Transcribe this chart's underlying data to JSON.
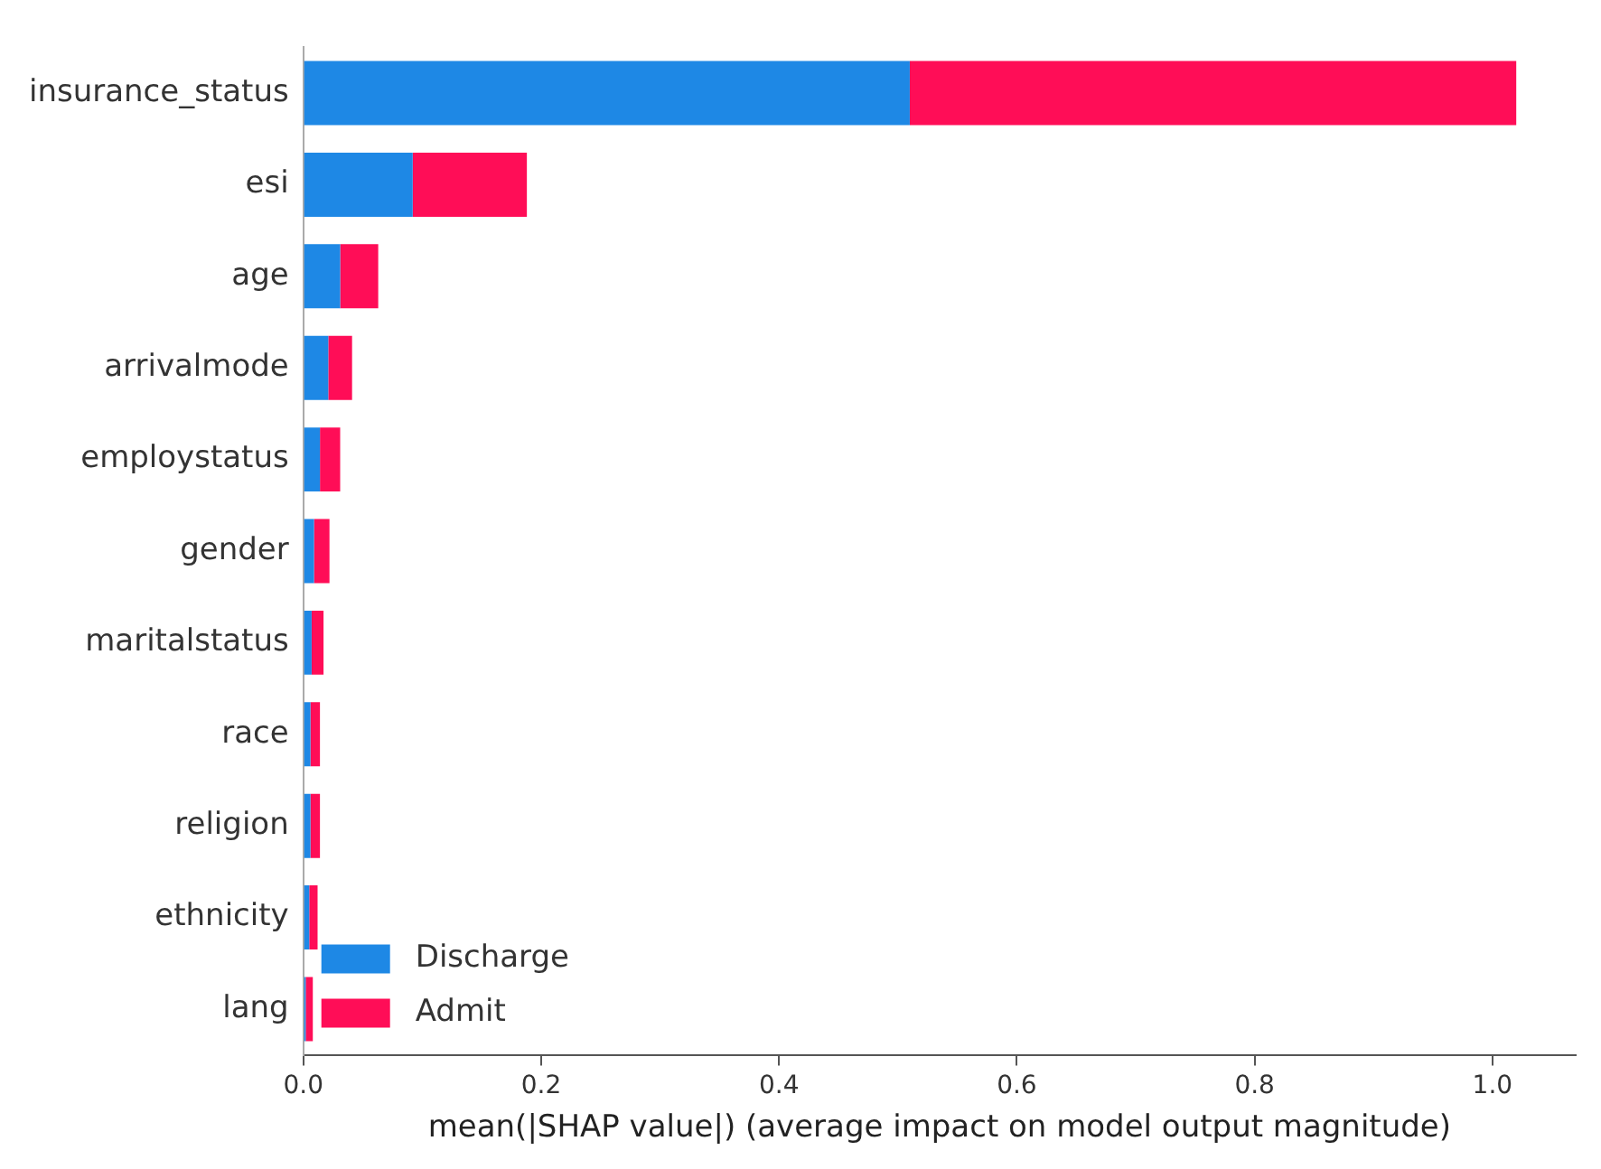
{
  "chart_data": {
    "type": "bar",
    "orientation": "horizontal",
    "stacked": true,
    "xlabel": "mean(|SHAP value|) (average impact on model output magnitude)",
    "categories": [
      "insurance_status",
      "esi",
      "age",
      "arrivalmode",
      "employstatus",
      "gender",
      "maritalstatus",
      "race",
      "religion",
      "ethnicity",
      "lang"
    ],
    "series": [
      {
        "name": "Discharge",
        "color": "#1e88e5",
        "values": [
          0.51,
          0.092,
          0.031,
          0.021,
          0.014,
          0.009,
          0.007,
          0.006,
          0.006,
          0.005,
          0.002
        ]
      },
      {
        "name": "Admit",
        "color": "#ff0d57",
        "values": [
          0.51,
          0.096,
          0.032,
          0.02,
          0.017,
          0.013,
          0.01,
          0.008,
          0.008,
          0.007,
          0.006
        ]
      }
    ],
    "xlim": [
      0,
      1.07
    ],
    "xticks": [
      {
        "value": 0,
        "label": "0.0"
      },
      0.2,
      0.4,
      0.6,
      0.8,
      {
        "value": 1,
        "label": "1.0"
      }
    ],
    "legend": "bottom left"
  }
}
